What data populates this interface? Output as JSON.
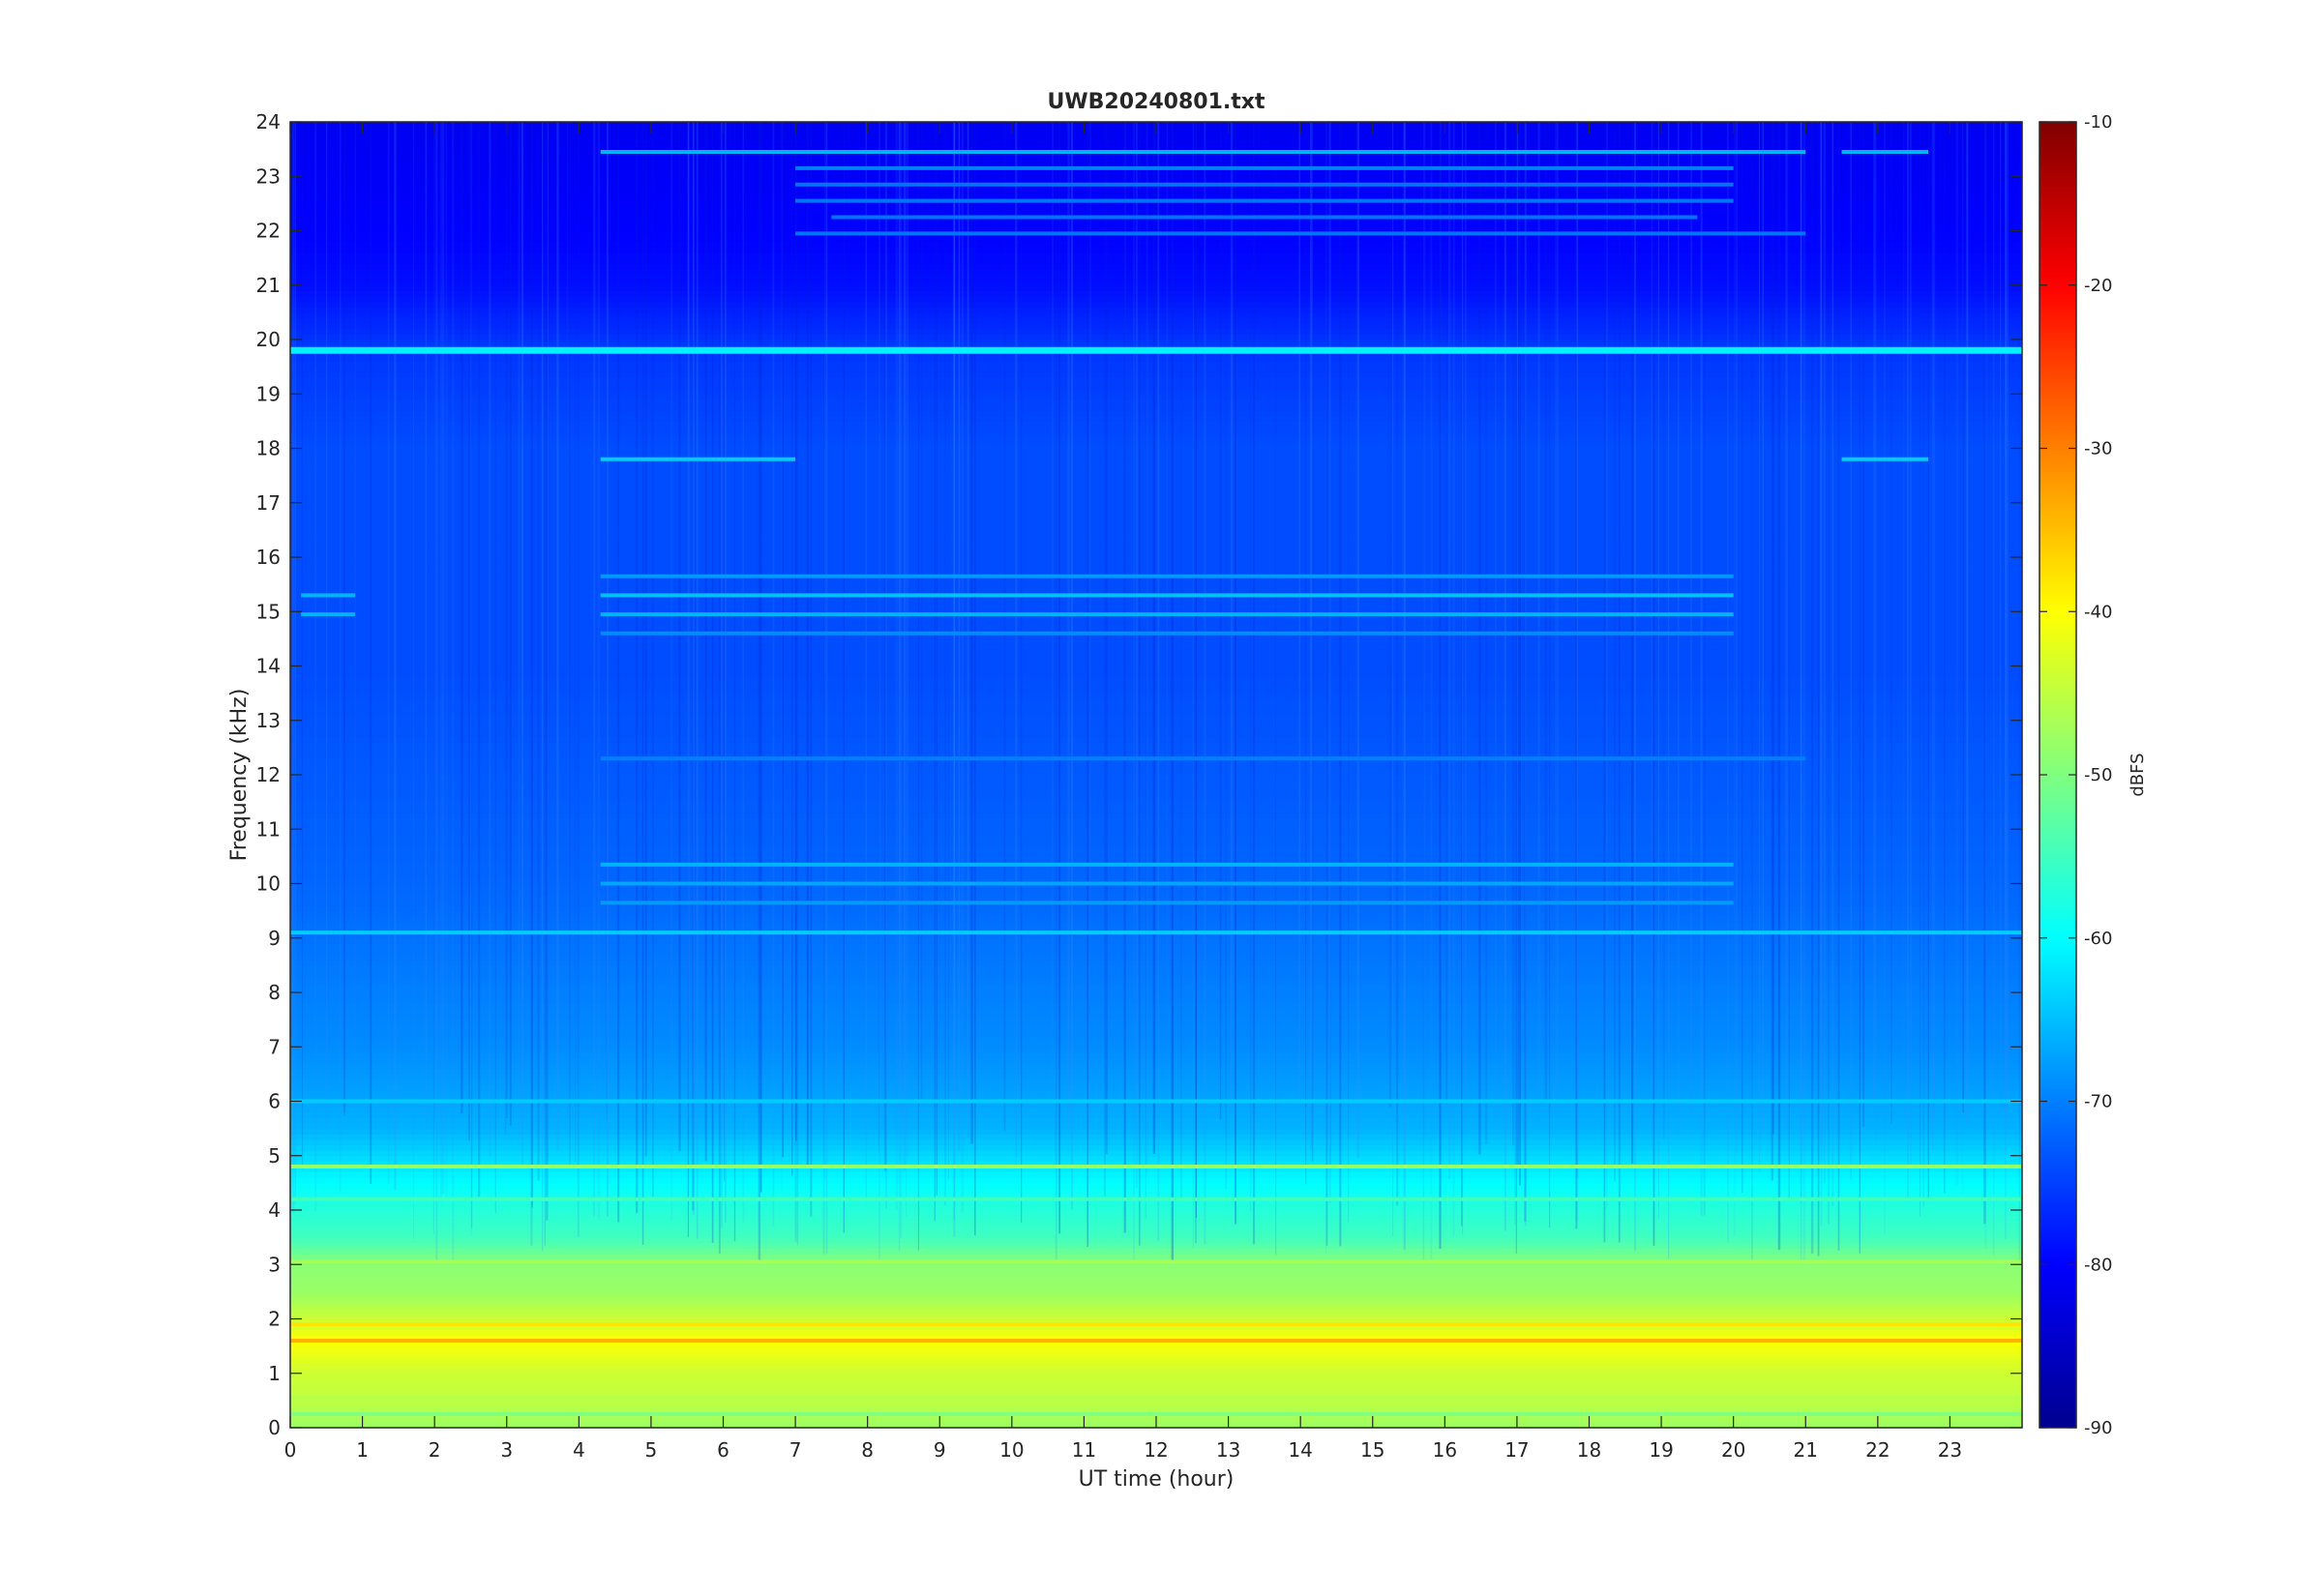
{
  "chart_data": {
    "type": "heatmap",
    "title": "UWB20240801.txt",
    "xlabel": "UT time (hour)",
    "ylabel": "Frequency (kHz)",
    "colorbar_label": "dBFS",
    "colormap": "jet",
    "xlim": [
      0,
      24
    ],
    "ylim": [
      0,
      24
    ],
    "clim": [
      -90,
      -10
    ],
    "x_ticks": [
      0,
      1,
      2,
      3,
      4,
      5,
      6,
      7,
      8,
      9,
      10,
      11,
      12,
      13,
      14,
      15,
      16,
      17,
      18,
      19,
      20,
      21,
      22,
      23
    ],
    "y_ticks": [
      0,
      1,
      2,
      3,
      4,
      5,
      6,
      7,
      8,
      9,
      10,
      11,
      12,
      13,
      14,
      15,
      16,
      17,
      18,
      19,
      20,
      21,
      22,
      23,
      24
    ],
    "colorbar_ticks": [
      -10,
      -20,
      -30,
      -40,
      -50,
      -60,
      -70,
      -80,
      -90
    ],
    "grid": false,
    "frequency_profile_dBFS": [
      {
        "f": 0.0,
        "v": -48
      },
      {
        "f": 0.5,
        "v": -45
      },
      {
        "f": 1.0,
        "v": -44
      },
      {
        "f": 1.6,
        "v": -40
      },
      {
        "f": 2.0,
        "v": -44
      },
      {
        "f": 2.5,
        "v": -48
      },
      {
        "f": 3.0,
        "v": -49
      },
      {
        "f": 3.5,
        "v": -55
      },
      {
        "f": 4.0,
        "v": -57
      },
      {
        "f": 4.5,
        "v": -60
      },
      {
        "f": 5.0,
        "v": -63
      },
      {
        "f": 5.5,
        "v": -66
      },
      {
        "f": 6.0,
        "v": -67
      },
      {
        "f": 7.0,
        "v": -69
      },
      {
        "f": 8.0,
        "v": -70
      },
      {
        "f": 9.0,
        "v": -71
      },
      {
        "f": 10.0,
        "v": -72
      },
      {
        "f": 12.0,
        "v": -73
      },
      {
        "f": 14.0,
        "v": -74
      },
      {
        "f": 16.0,
        "v": -74
      },
      {
        "f": 18.0,
        "v": -74
      },
      {
        "f": 20.0,
        "v": -76
      },
      {
        "f": 21.0,
        "v": -79
      },
      {
        "f": 22.0,
        "v": -80
      },
      {
        "f": 24.0,
        "v": -81
      }
    ],
    "tonal_lines": [
      {
        "f": 19.8,
        "t_start": 0,
        "t_end": 24,
        "v": -61
      },
      {
        "f": 23.45,
        "t_start": 4.3,
        "t_end": 21,
        "v": -66
      },
      {
        "f": 23.45,
        "t_start": 21.5,
        "t_end": 22.7,
        "v": -66
      },
      {
        "f": 23.15,
        "t_start": 7,
        "t_end": 20,
        "v": -70
      },
      {
        "f": 22.85,
        "t_start": 7,
        "t_end": 20,
        "v": -71
      },
      {
        "f": 22.55,
        "t_start": 7,
        "t_end": 20,
        "v": -71
      },
      {
        "f": 22.25,
        "t_start": 7.5,
        "t_end": 19.5,
        "v": -71
      },
      {
        "f": 21.95,
        "t_start": 7,
        "t_end": 21,
        "v": -71
      },
      {
        "f": 17.8,
        "t_start": 4.3,
        "t_end": 7,
        "v": -64
      },
      {
        "f": 17.8,
        "t_start": 21.5,
        "t_end": 22.7,
        "v": -64
      },
      {
        "f": 15.3,
        "t_start": 4.3,
        "t_end": 20,
        "v": -65
      },
      {
        "f": 14.95,
        "t_start": 4.3,
        "t_end": 20,
        "v": -66
      },
      {
        "f": 15.65,
        "t_start": 4.3,
        "t_end": 20,
        "v": -68
      },
      {
        "f": 14.6,
        "t_start": 4.3,
        "t_end": 20,
        "v": -69
      },
      {
        "f": 15.3,
        "t_start": 0.15,
        "t_end": 0.9,
        "v": -66
      },
      {
        "f": 14.95,
        "t_start": 0.15,
        "t_end": 0.9,
        "v": -66
      },
      {
        "f": 10.35,
        "t_start": 4.3,
        "t_end": 20,
        "v": -66
      },
      {
        "f": 10.0,
        "t_start": 4.3,
        "t_end": 20,
        "v": -67
      },
      {
        "f": 9.65,
        "t_start": 4.3,
        "t_end": 20,
        "v": -68
      },
      {
        "f": 12.3,
        "t_start": 4.3,
        "t_end": 21,
        "v": -70
      },
      {
        "f": 9.1,
        "t_start": 0,
        "t_end": 24,
        "v": -64
      },
      {
        "f": 6.0,
        "t_start": 0,
        "t_end": 24,
        "v": -64
      },
      {
        "f": 4.8,
        "t_start": 0,
        "t_end": 24,
        "v": -48
      },
      {
        "f": 4.2,
        "t_start": 0,
        "t_end": 24,
        "v": -55
      },
      {
        "f": 3.05,
        "t_start": 0,
        "t_end": 24,
        "v": -47
      },
      {
        "f": 1.9,
        "t_start": 0,
        "t_end": 24,
        "v": -38
      },
      {
        "f": 1.6,
        "t_start": 0,
        "t_end": 24,
        "v": -34
      },
      {
        "f": 0.55,
        "t_start": 0,
        "t_end": 24,
        "v": -46
      },
      {
        "f": 0.25,
        "t_start": 0,
        "t_end": 24,
        "v": -50
      }
    ]
  }
}
